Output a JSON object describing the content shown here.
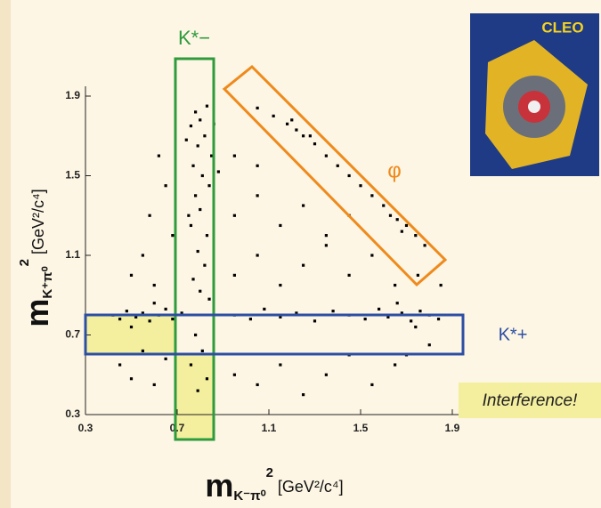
{
  "chart_data": {
    "type": "scatter",
    "x_label": {
      "main": "m",
      "sub": "K⁻π⁰",
      "sup": "2",
      "unit": " [GeV²/c⁴]"
    },
    "y_label": {
      "main": "m",
      "sub": "K⁺π⁰",
      "sup": "2",
      "unit": " [GeV²/c⁴]"
    },
    "xlim": [
      0.3,
      1.95
    ],
    "ylim": [
      0.3,
      1.95
    ],
    "xticks": [
      0.3,
      0.7,
      1.1,
      1.5,
      1.9
    ],
    "yticks": [
      0.3,
      0.7,
      1.1,
      1.5,
      1.9
    ],
    "annotations": {
      "kstar_minus": "K*−",
      "phi": "φ",
      "kstar_plus": "K*+",
      "interference": "Interference!",
      "logo": "CLEO"
    },
    "series": [
      {
        "color": "#000000",
        "x": [
          0.78,
          0.8,
          0.83,
          0.76,
          0.82,
          0.79,
          0.85,
          0.77,
          0.81,
          0.84,
          0.78,
          0.8,
          0.76,
          0.83,
          0.79,
          0.82,
          0.77,
          0.8,
          0.84,
          0.78,
          0.81,
          0.76,
          0.83,
          0.79,
          0.86,
          0.74,
          0.88,
          0.75,
          0.42,
          0.45,
          0.48,
          0.52,
          0.55,
          0.58,
          0.62,
          0.65,
          0.68,
          0.72,
          0.95,
          1.02,
          1.08,
          1.15,
          1.22,
          1.3,
          1.38,
          1.45,
          1.52,
          1.58,
          1.62,
          1.68,
          1.72,
          1.76,
          1.8,
          1.84,
          1.66,
          1.74,
          0.5,
          0.6,
          1.05,
          1.12,
          1.18,
          1.22,
          1.25,
          1.3,
          1.35,
          1.4,
          1.45,
          1.5,
          1.55,
          1.6,
          1.63,
          1.66,
          1.7,
          1.74,
          1.78,
          1.68,
          1.2,
          1.28,
          0.45,
          0.5,
          0.6,
          0.55,
          0.65,
          0.95,
          1.05,
          1.15,
          1.25,
          1.35,
          1.45,
          1.55,
          1.65,
          0.95,
          1.05,
          1.15,
          1.25,
          1.35,
          1.45,
          1.55,
          1.65,
          1.75,
          0.95,
          1.05,
          1.15,
          1.25,
          1.35,
          1.45,
          0.95,
          1.05,
          0.62,
          0.65,
          0.58,
          0.55,
          0.5,
          0.68,
          0.6,
          1.85,
          1.8,
          1.7
        ],
        "y": [
          1.82,
          1.78,
          1.85,
          1.75,
          1.7,
          1.65,
          1.6,
          1.55,
          1.5,
          1.45,
          1.4,
          1.33,
          1.25,
          1.2,
          1.12,
          1.05,
          0.98,
          0.92,
          0.88,
          0.7,
          0.62,
          0.55,
          0.48,
          0.42,
          1.76,
          1.68,
          1.52,
          1.3,
          0.8,
          0.78,
          0.82,
          0.79,
          0.81,
          0.77,
          0.8,
          0.83,
          0.78,
          0.81,
          0.8,
          0.78,
          0.83,
          0.79,
          0.81,
          0.77,
          0.82,
          0.8,
          0.78,
          0.83,
          0.79,
          0.81,
          0.77,
          0.82,
          0.8,
          0.78,
          0.86,
          0.74,
          0.74,
          0.86,
          1.84,
          1.8,
          1.76,
          1.73,
          1.7,
          1.66,
          1.6,
          1.55,
          1.5,
          1.45,
          1.4,
          1.35,
          1.3,
          1.28,
          1.25,
          1.2,
          1.15,
          1.22,
          1.78,
          1.7,
          0.55,
          0.48,
          0.45,
          0.62,
          0.58,
          0.5,
          0.45,
          0.55,
          0.4,
          0.5,
          0.6,
          0.45,
          0.55,
          1.0,
          1.1,
          0.95,
          1.05,
          1.15,
          1.0,
          1.1,
          0.95,
          1.0,
          1.3,
          1.4,
          1.25,
          1.35,
          1.2,
          1.3,
          1.6,
          1.55,
          1.6,
          1.45,
          1.3,
          1.1,
          1.0,
          1.2,
          0.95,
          0.95,
          0.65,
          0.6
        ]
      }
    ]
  }
}
